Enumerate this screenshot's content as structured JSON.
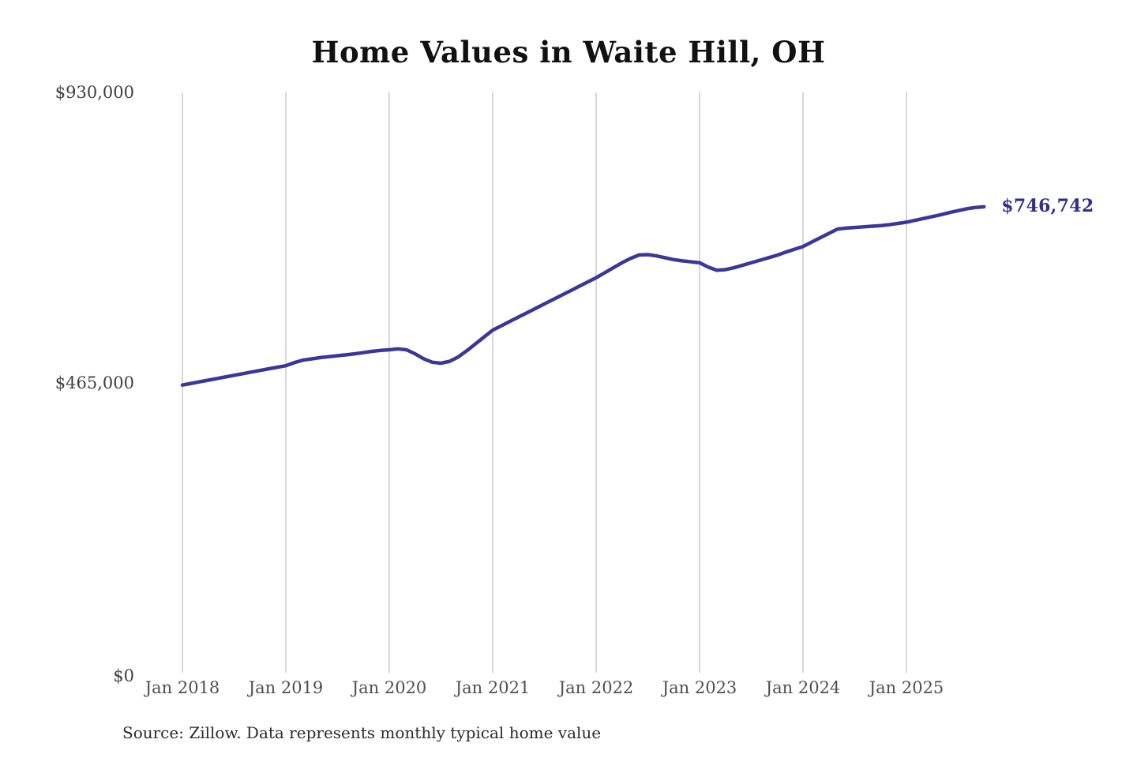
{
  "header": {
    "title": "Home Values in Waite Hill, OH"
  },
  "footer": {
    "source": "Source: Zillow. Data represents monthly typical home value"
  },
  "annotation": {
    "latest_value_label": "$746,742",
    "latest_value": 746742
  },
  "chart_data": {
    "type": "line",
    "title": "Home Values in Waite Hill, OH",
    "xlabel": "",
    "ylabel": "",
    "ylim": [
      0,
      930000
    ],
    "grid": "vertical-only",
    "legend": "none",
    "y_ticks": [
      {
        "label": "$930,000",
        "value": 930000
      },
      {
        "label": "$465,000",
        "value": 465000
      },
      {
        "label": "$0",
        "value": 0
      }
    ],
    "x_ticks": [
      {
        "label": "Jan 2018",
        "month": "2018-01"
      },
      {
        "label": "Jan 2019",
        "month": "2019-01"
      },
      {
        "label": "Jan 2020",
        "month": "2020-01"
      },
      {
        "label": "Jan 2021",
        "month": "2021-01"
      },
      {
        "label": "Jan 2022",
        "month": "2022-01"
      },
      {
        "label": "Jan 2023",
        "month": "2023-01"
      },
      {
        "label": "Jan 2024",
        "month": "2024-01"
      },
      {
        "label": "Jan 2025",
        "month": "2025-01"
      }
    ],
    "series": [
      {
        "name": "Monthly typical home value",
        "months": [
          "2018-01",
          "2018-02",
          "2018-03",
          "2018-04",
          "2018-05",
          "2018-06",
          "2018-07",
          "2018-08",
          "2018-09",
          "2018-10",
          "2018-11",
          "2018-12",
          "2019-01",
          "2019-02",
          "2019-03",
          "2019-04",
          "2019-05",
          "2019-06",
          "2019-07",
          "2019-08",
          "2019-09",
          "2019-10",
          "2019-11",
          "2019-12",
          "2020-01",
          "2020-02",
          "2020-03",
          "2020-04",
          "2020-05",
          "2020-06",
          "2020-07",
          "2020-08",
          "2020-09",
          "2020-10",
          "2020-11",
          "2020-12",
          "2021-01",
          "2021-02",
          "2021-03",
          "2021-04",
          "2021-05",
          "2021-06",
          "2021-07",
          "2021-08",
          "2021-09",
          "2021-10",
          "2021-11",
          "2021-12",
          "2022-01",
          "2022-02",
          "2022-03",
          "2022-04",
          "2022-05",
          "2022-06",
          "2022-07",
          "2022-08",
          "2022-09",
          "2022-10",
          "2022-11",
          "2022-12",
          "2023-01",
          "2023-02",
          "2023-03",
          "2023-04",
          "2023-05",
          "2023-06",
          "2023-07",
          "2023-08",
          "2023-09",
          "2023-10",
          "2023-11",
          "2023-12",
          "2024-01",
          "2024-02",
          "2024-03",
          "2024-04",
          "2024-05",
          "2024-06",
          "2024-07",
          "2024-08",
          "2024-09",
          "2024-10",
          "2024-11",
          "2024-12",
          "2025-01",
          "2025-02",
          "2025-03",
          "2025-04",
          "2025-05",
          "2025-06",
          "2025-07",
          "2025-08",
          "2025-09",
          "2025-10"
        ],
        "values": [
          461000,
          463600,
          466200,
          468800,
          471400,
          474000,
          476600,
          479200,
          481800,
          484400,
          487000,
          489500,
          492000,
          497000,
          501000,
          503000,
          505000,
          506500,
          508000,
          509500,
          511000,
          513000,
          515000,
          516500,
          517500,
          519000,
          517500,
          511000,
          503000,
          497500,
          496000,
          499000,
          506000,
          516000,
          527000,
          538000,
          549000,
          556000,
          563000,
          570000,
          577000,
          584000,
          591000,
          598000,
          605000,
          612000,
          619000,
          626000,
          633000,
          641000,
          649000,
          657000,
          664000,
          669500,
          670000,
          668000,
          665000,
          662000,
          660000,
          658500,
          657000,
          650000,
          645000,
          646000,
          649000,
          653000,
          657000,
          661000,
          665000,
          669000,
          674000,
          678500,
          683000,
          690000,
          697000,
          704000,
          711000,
          712500,
          713500,
          714500,
          715500,
          716500,
          718000,
          720000,
          722000,
          725000,
          728000,
          731000,
          734000,
          737500,
          740500,
          743500,
          745500,
          746742
        ]
      }
    ],
    "colors": {
      "line": "#3b3799",
      "end_label": "#2e2c8e",
      "gridline": "#cbcbcb",
      "axis_text": "#4f4f4f",
      "title_text": "#111111",
      "source_text": "#2b2b2b"
    }
  }
}
